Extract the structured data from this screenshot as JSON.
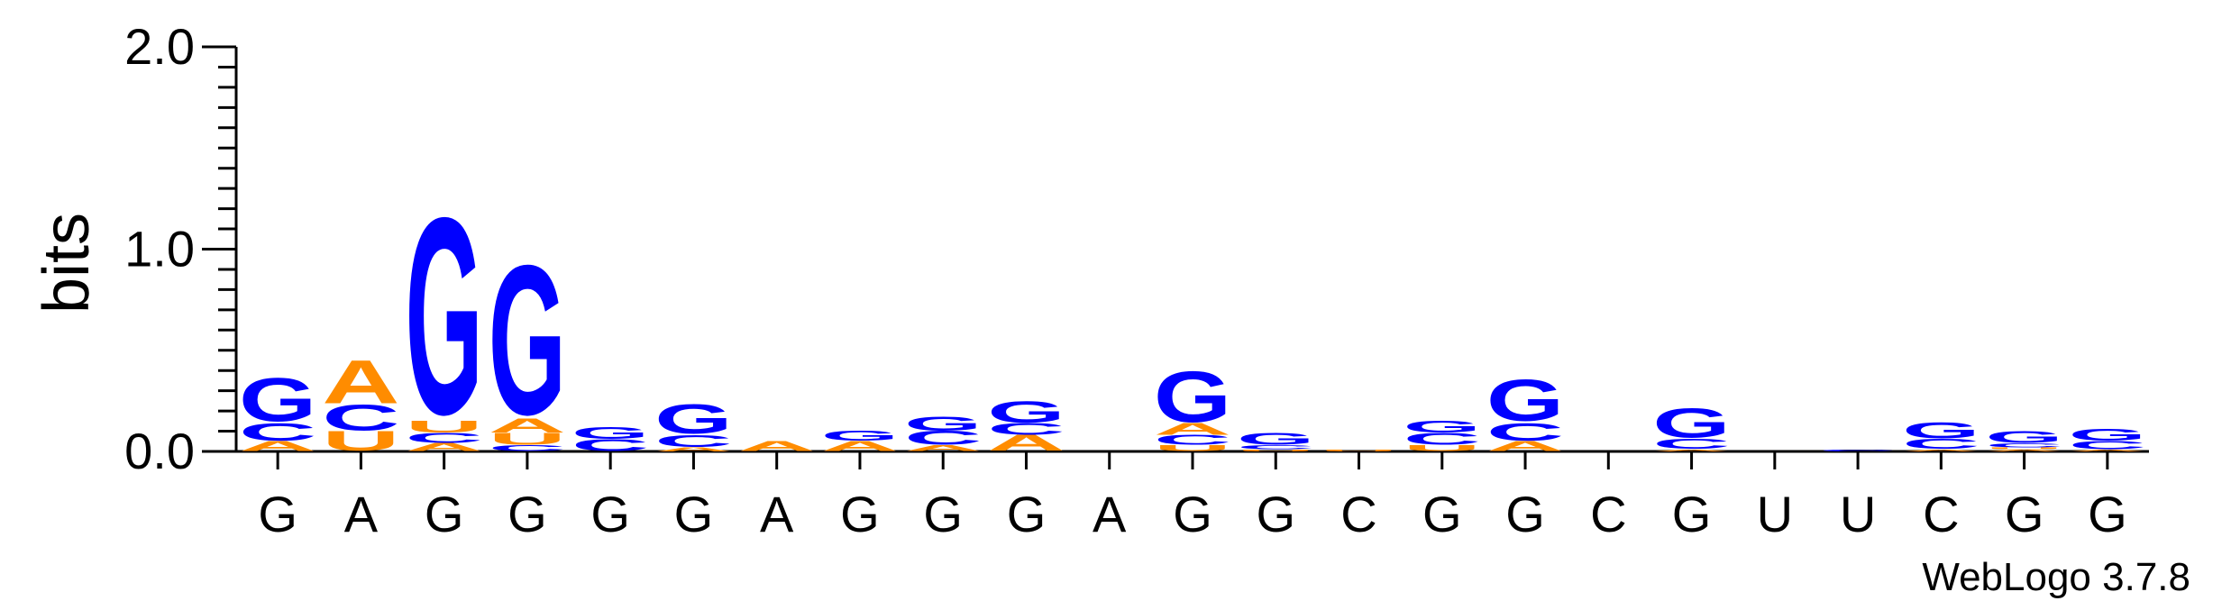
{
  "chart_data": {
    "type": "sequence-logo",
    "ylabel": "bits",
    "ylim": [
      0,
      2.0
    ],
    "y_ticks": [
      "0.0",
      "1.0",
      "2.0"
    ],
    "credit": "WebLogo 3.7.8",
    "colors": {
      "G": "#0000ff",
      "C": "#0000ff",
      "A": "#ff8c00",
      "U": "#ff8c00"
    },
    "positions": [
      {
        "consensus": "G",
        "stack": [
          [
            "A",
            0.05
          ],
          [
            "C",
            0.09
          ],
          [
            "G",
            0.22
          ]
        ]
      },
      {
        "consensus": "A",
        "stack": [
          [
            "U",
            0.1
          ],
          [
            "C",
            0.13
          ],
          [
            "A",
            0.22
          ]
        ]
      },
      {
        "consensus": "G",
        "stack": [
          [
            "A",
            0.04
          ],
          [
            "C",
            0.05
          ],
          [
            "U",
            0.06
          ],
          [
            "G",
            1.0
          ]
        ]
      },
      {
        "consensus": "G",
        "stack": [
          [
            "C",
            0.03
          ],
          [
            "U",
            0.06
          ],
          [
            "A",
            0.07
          ],
          [
            "G",
            0.76
          ]
        ]
      },
      {
        "consensus": "G",
        "stack": [
          [
            "C",
            0.06
          ],
          [
            "G",
            0.06
          ]
        ]
      },
      {
        "consensus": "G",
        "stack": [
          [
            "A",
            0.02
          ],
          [
            "C",
            0.06
          ],
          [
            "G",
            0.15
          ]
        ]
      },
      {
        "consensus": "A",
        "stack": [
          [
            "A",
            0.05
          ]
        ]
      },
      {
        "consensus": "G",
        "stack": [
          [
            "A",
            0.05
          ],
          [
            "G",
            0.05
          ]
        ]
      },
      {
        "consensus": "G",
        "stack": [
          [
            "A",
            0.03
          ],
          [
            "C",
            0.07
          ],
          [
            "G",
            0.07
          ]
        ]
      },
      {
        "consensus": "G",
        "stack": [
          [
            "A",
            0.08
          ],
          [
            "C",
            0.06
          ],
          [
            "G",
            0.11
          ]
        ]
      },
      {
        "consensus": "A",
        "stack": []
      },
      {
        "consensus": "G",
        "stack": [
          [
            "U",
            0.03
          ],
          [
            "C",
            0.05
          ],
          [
            "A",
            0.06
          ],
          [
            "G",
            0.26
          ]
        ]
      },
      {
        "consensus": "G",
        "stack": [
          [
            "U",
            0.01
          ],
          [
            "C",
            0.02
          ],
          [
            "G",
            0.06
          ]
        ]
      },
      {
        "consensus": "C",
        "stack": [
          [
            "U",
            0.01
          ]
        ]
      },
      {
        "consensus": "G",
        "stack": [
          [
            "U",
            0.03
          ],
          [
            "C",
            0.06
          ],
          [
            "G",
            0.06
          ]
        ]
      },
      {
        "consensus": "G",
        "stack": [
          [
            "A",
            0.05
          ],
          [
            "C",
            0.09
          ],
          [
            "G",
            0.21
          ]
        ]
      },
      {
        "consensus": "C",
        "stack": []
      },
      {
        "consensus": "G",
        "stack": [
          [
            "A",
            0.01
          ],
          [
            "C",
            0.05
          ],
          [
            "G",
            0.15
          ]
        ]
      },
      {
        "consensus": "U",
        "stack": []
      },
      {
        "consensus": "U",
        "stack": [
          [
            "C",
            0.01
          ]
        ]
      },
      {
        "consensus": "C",
        "stack": [
          [
            "A",
            0.01
          ],
          [
            "C",
            0.05
          ],
          [
            "G",
            0.08
          ]
        ]
      },
      {
        "consensus": "G",
        "stack": [
          [
            "A",
            0.01
          ],
          [
            "U",
            0.01
          ],
          [
            "C",
            0.02
          ],
          [
            "G",
            0.06
          ]
        ]
      },
      {
        "consensus": "G",
        "stack": [
          [
            "A",
            0.01
          ],
          [
            "C",
            0.04
          ],
          [
            "G",
            0.06
          ]
        ]
      }
    ]
  }
}
